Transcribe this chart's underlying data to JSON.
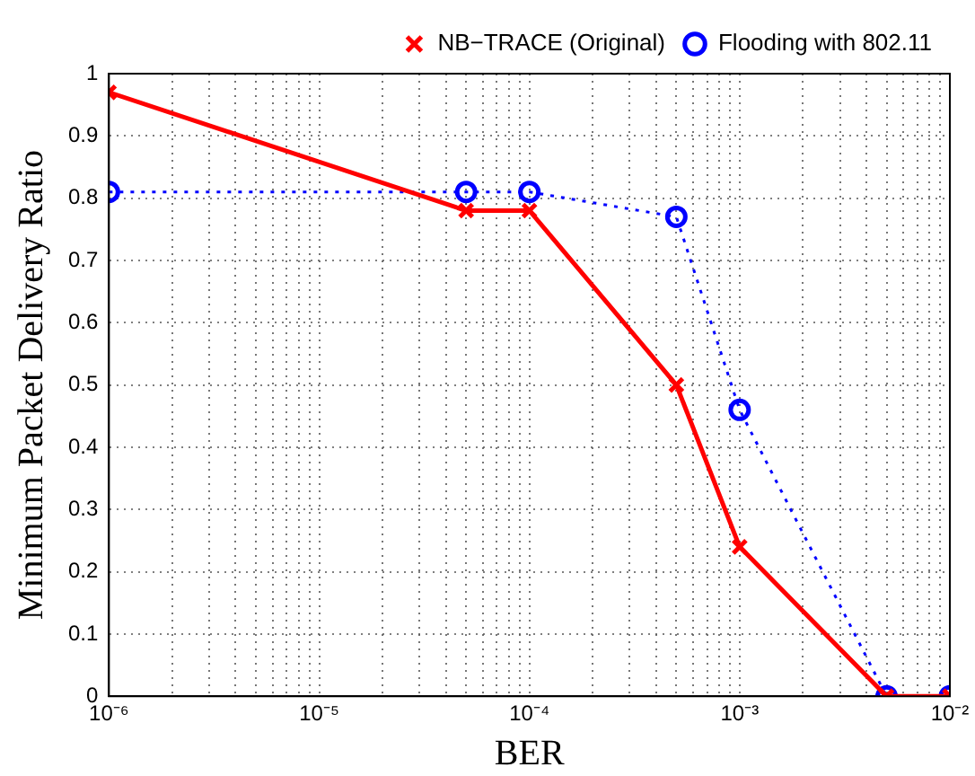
{
  "chart_data": {
    "type": "line",
    "xlabel": "BER",
    "ylabel": "Minimum Packet Delivery Ratio",
    "log": "x",
    "grid": true,
    "legend": "top right",
    "x": [
      1e-06,
      5e-05,
      0.0001,
      0.0005,
      0.001,
      0.005,
      0.01
    ],
    "xlim": [
      1e-06,
      0.01
    ],
    "xticks": [
      {
        "value": 1e-06,
        "label": "10⁻⁶"
      },
      {
        "value": 2e-06,
        "label": null
      },
      {
        "value": 3e-06,
        "label": null
      },
      {
        "value": 4e-06,
        "label": null
      },
      {
        "value": 5e-06,
        "label": null
      },
      {
        "value": 6e-06,
        "label": null
      },
      {
        "value": 7e-06,
        "label": null
      },
      {
        "value": 8e-06,
        "label": null
      },
      {
        "value": 9e-06,
        "label": null
      },
      {
        "value": 1e-05,
        "label": "10⁻⁵"
      },
      {
        "value": 2e-05,
        "label": null
      },
      {
        "value": 3e-05,
        "label": null
      },
      {
        "value": 4e-05,
        "label": null
      },
      {
        "value": 5e-05,
        "label": null
      },
      {
        "value": 6e-05,
        "label": null
      },
      {
        "value": 7e-05,
        "label": null
      },
      {
        "value": 8e-05,
        "label": null
      },
      {
        "value": 9e-05,
        "label": null
      },
      {
        "value": 0.0001,
        "label": "10⁻⁴"
      },
      {
        "value": 0.0002,
        "label": null
      },
      {
        "value": 0.0003,
        "label": null
      },
      {
        "value": 0.0004,
        "label": null
      },
      {
        "value": 0.0005,
        "label": null
      },
      {
        "value": 0.0006,
        "label": null
      },
      {
        "value": 0.0007,
        "label": null
      },
      {
        "value": 0.0008,
        "label": null
      },
      {
        "value": 0.0009,
        "label": null
      },
      {
        "value": 0.001,
        "label": "10⁻³"
      },
      {
        "value": 0.002,
        "label": null
      },
      {
        "value": 0.003,
        "label": null
      },
      {
        "value": 0.004,
        "label": null
      },
      {
        "value": 0.005,
        "label": null
      },
      {
        "value": 0.006,
        "label": null
      },
      {
        "value": 0.007,
        "label": null
      },
      {
        "value": 0.008,
        "label": null
      },
      {
        "value": 0.009,
        "label": null
      },
      {
        "value": 0.01,
        "label": "10⁻²"
      }
    ],
    "ylim": [
      0,
      1
    ],
    "yticks": [
      0,
      0.1,
      0.2,
      0.3,
      0.4,
      0.5,
      0.6,
      0.7,
      0.8,
      0.9,
      1
    ],
    "series": [
      {
        "name": "NB−TRACE (Original)",
        "color": "#ff0000",
        "marker": "cross",
        "line_style": "solid",
        "values": [
          0.97,
          0.78,
          0.78,
          0.5,
          0.24,
          0,
          0
        ]
      },
      {
        "name": "Flooding with 802.11",
        "color": "#0000ff",
        "marker": "circle",
        "line_style": "dotted",
        "values": [
          0.81,
          0.81,
          0.81,
          0.77,
          0.46,
          0,
          0
        ]
      }
    ]
  }
}
